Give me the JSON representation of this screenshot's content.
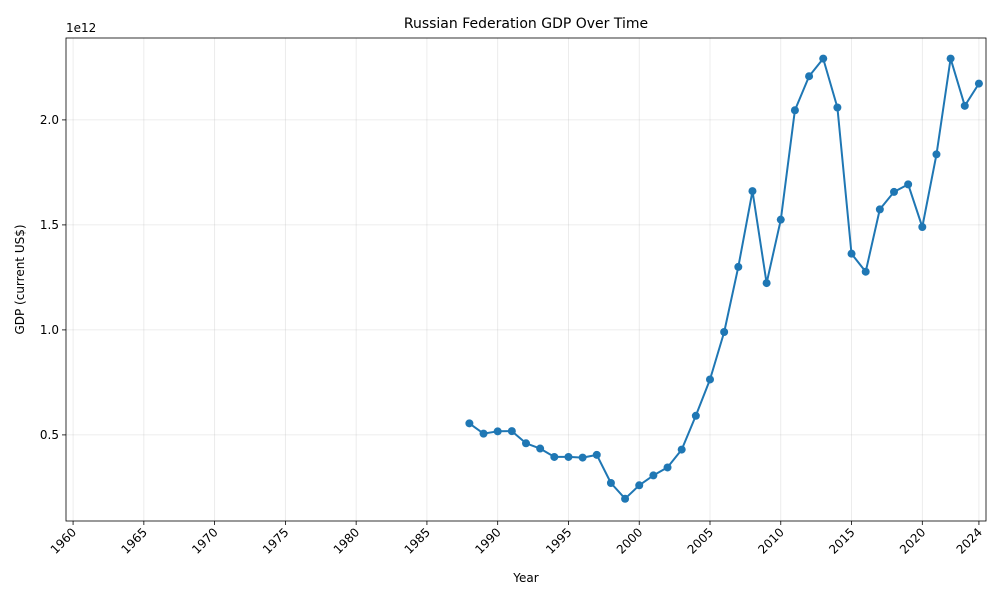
{
  "chart_data": {
    "type": "line",
    "title": "Russian Federation GDP Over Time",
    "xlabel": "Year",
    "ylabel": "GDP (current US$)",
    "y_offset_label": "1e12",
    "xlim": [
      1960,
      2024
    ],
    "ylim": [
      90000000000.0,
      2390000000000.0
    ],
    "x_ticks": [
      1960,
      1965,
      1970,
      1975,
      1980,
      1985,
      1990,
      1995,
      2000,
      2005,
      2010,
      2015,
      2020,
      2024
    ],
    "y_ticks": [
      500000000000.0,
      1000000000000.0,
      1500000000000.0,
      2000000000000.0
    ],
    "y_tick_labels": [
      "0.5",
      "1.0",
      "1.5",
      "2.0"
    ],
    "grid": true,
    "series": [
      {
        "color": "#1f77b4",
        "marker": "circle",
        "x": [
          1988,
          1989,
          1990,
          1991,
          1992,
          1993,
          1994,
          1995,
          1996,
          1997,
          1998,
          1999,
          2000,
          2001,
          2002,
          2003,
          2004,
          2005,
          2006,
          2007,
          2008,
          2009,
          2010,
          2011,
          2012,
          2013,
          2014,
          2015,
          2016,
          2017,
          2018,
          2019,
          2020,
          2021,
          2022,
          2023,
          2024
        ],
        "y": [
          555000000000.0,
          506000000000.0,
          517000000000.0,
          518000000000.0,
          460000000000.0,
          435000000000.0,
          395000000000.0,
          395000000000.0,
          392000000000.0,
          405000000000.0,
          271000000000.0,
          196000000000.0,
          260000000000.0,
          307000000000.0,
          345000000000.0,
          430000000000.0,
          591000000000.0,
          764000000000.0,
          990000000000.0,
          1300000000000.0,
          1661000000000.0,
          1223000000000.0,
          1525000000000.0,
          2046000000000.0,
          2208000000000.0,
          2292000000000.0,
          2059000000000.0,
          1363000000000.0,
          1277000000000.0,
          1574000000000.0,
          1657000000000.0,
          1693000000000.0,
          1490000000000.0,
          1836000000000.0,
          2292000000000.0,
          2067000000000.0,
          2173000000000.0
        ]
      }
    ]
  }
}
